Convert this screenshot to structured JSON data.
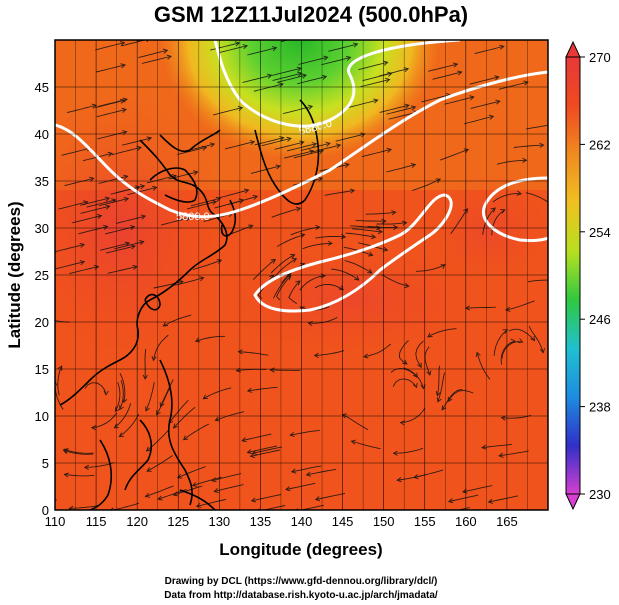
{
  "title": "GSM 12Z11Jul2024 (500.0hPa)",
  "xaxis": {
    "label": "Longitude (degrees)",
    "ticks": [
      110,
      115,
      120,
      125,
      130,
      135,
      140,
      145,
      150,
      155,
      160,
      165
    ],
    "tick_labels": [
      "110",
      "115",
      "120",
      "125",
      "130",
      "135",
      "140",
      "145",
      "150",
      "155",
      "160",
      "165"
    ]
  },
  "yaxis": {
    "label": "Latitude  (degrees)",
    "ticks": [
      0,
      5,
      10,
      15,
      20,
      25,
      30,
      35,
      40,
      45
    ],
    "tick_labels": [
      "0",
      "5",
      "10",
      "15",
      "20",
      "25",
      "30",
      "35",
      "40",
      "45"
    ]
  },
  "map": {
    "lon_range": [
      110,
      170
    ],
    "lat_range": [
      0,
      50
    ],
    "field": "temperature shading (K) with wind streamlines",
    "colors": {
      "warm": "#f04a1a",
      "hot": "#f2342a",
      "mid": "#f08a1a",
      "cool_yellow": "#e8e020",
      "cold_green": "#30c030",
      "contour": "#ffffff",
      "streamline": "#111111",
      "coast": "#000000"
    },
    "contours": [
      {
        "label": "5800.0",
        "level": 5800
      },
      {
        "label": "5880.0",
        "level": 5880
      }
    ]
  },
  "colorbar": {
    "ticks": [
      "270",
      "262",
      "254",
      "246",
      "238",
      "230"
    ],
    "min": 230,
    "max": 270,
    "stops": [
      "#d63fd0",
      "#3030c8",
      "#1e8ce0",
      "#20c0d0",
      "#30c840",
      "#b8e020",
      "#f0c020",
      "#f08a20",
      "#f04a20",
      "#e83838"
    ]
  },
  "credits": {
    "line1": "Drawing by DCL (https://www.gfd-dennou.org/library/dcl/)",
    "line2": "Data from http://database.rish.kyoto-u.ac.jp/arch/jmadata/"
  }
}
